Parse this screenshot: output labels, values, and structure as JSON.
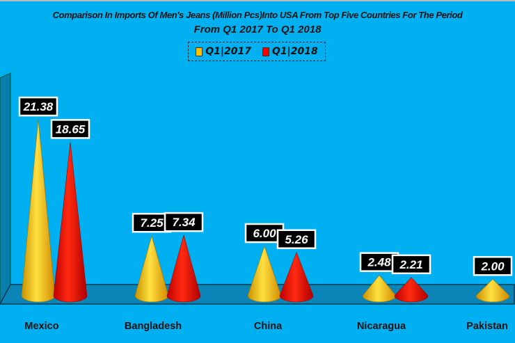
{
  "chart_data": {
    "type": "bar",
    "subtype": "3d-cone",
    "title": "Comparison In Imports Of Men's Jeans (Million Pcs)Into USA From Top Five Countries For The Period",
    "subtitle": "From Q1 2017 To Q1 2018",
    "categories": [
      "Mexico",
      "Bangladesh",
      "China",
      "Nicaragua",
      "Pakistan"
    ],
    "series": [
      {
        "name": "Q1|2017",
        "color": "#ffc000",
        "values": [
          21.38,
          7.25,
          6.0,
          2.48,
          2.0
        ]
      },
      {
        "name": "Q1|2018",
        "color": "#ff0000",
        "values": [
          18.65,
          7.34,
          5.26,
          2.21,
          null
        ]
      }
    ],
    "legend_position": "top",
    "grid": false,
    "ylim": [
      0,
      22
    ]
  }
}
